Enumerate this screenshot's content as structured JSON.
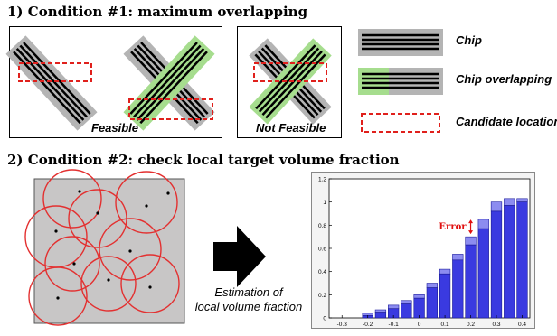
{
  "condition1": {
    "heading": "1) Condition #1: maximum overlapping",
    "feasible_label": "Feasible",
    "not_feasible_label": "Not Feasible"
  },
  "legend": {
    "chip": "Chip",
    "chip_overlapping": "Chip overlapping",
    "candidate_location": "Candidate location"
  },
  "condition2": {
    "heading": "2) Condition #2: check local target volume fraction",
    "estimation_line1": "Estimation of",
    "estimation_line2": "local volume fraction"
  },
  "colors": {
    "chip_gray": "#b4b4b4",
    "chip_green": "#a6dd8e",
    "candidate_red": "#e0201c",
    "circle_red": "#e33030",
    "bar_dark": "#3a3ae0",
    "bar_light": "#8c8cf0",
    "error_red": "#e01010"
  },
  "chart_data": {
    "type": "bar",
    "x": [
      -0.3,
      -0.25,
      -0.2,
      -0.15,
      -0.1,
      -0.05,
      0,
      0.05,
      0.1,
      0.15,
      0.2,
      0.25,
      0.3,
      0.35,
      0.4
    ],
    "series": [
      {
        "values": [
          0,
          0,
          0.02,
          0.05,
          0.08,
          0.12,
          0.17,
          0.26,
          0.38,
          0.5,
          0.63,
          0.77,
          0.92,
          0.97,
          1.0
        ]
      },
      {
        "values": [
          0,
          0,
          0.04,
          0.07,
          0.11,
          0.15,
          0.2,
          0.3,
          0.42,
          0.55,
          0.7,
          0.85,
          1.0,
          1.03,
          1.03
        ]
      }
    ],
    "xticks": [
      "-0.3",
      "-0.2",
      "-0.1",
      "0",
      "0.1",
      "0.2",
      "0.3",
      "0.4"
    ],
    "yticks": [
      "0",
      "0.2",
      "0.4",
      "0.6",
      "0.8",
      "1",
      "1.2"
    ],
    "ylim": [
      0,
      1.2
    ],
    "xlim": [
      -0.35,
      0.43
    ],
    "annotation": "Error",
    "annotation_x": 0.2
  }
}
